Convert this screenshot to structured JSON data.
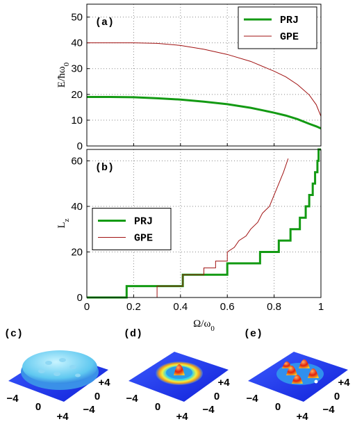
{
  "chart_data": [
    {
      "type": "line",
      "panel_label": "(a)",
      "ylabel": {
        "main": "E/ħω",
        "sub": "0"
      },
      "xlim": [
        0,
        1
      ],
      "ylim": [
        0,
        55
      ],
      "xticks": [
        0,
        0.2,
        0.4,
        0.6,
        0.8,
        1
      ],
      "xtick_labels": false,
      "yticks": [
        0,
        10,
        20,
        30,
        40,
        50
      ],
      "grid": true,
      "legend": "upper right",
      "series": [
        {
          "name": "PRJ",
          "color": "#139a13",
          "width": 3,
          "x": [
            0,
            0.1,
            0.2,
            0.3,
            0.4,
            0.5,
            0.6,
            0.7,
            0.8,
            0.85,
            0.9,
            0.95,
            0.98,
            1.0
          ],
          "values": [
            19,
            19,
            18.9,
            18.5,
            18,
            17.2,
            16.2,
            14.8,
            12.9,
            11.8,
            10.4,
            8.6,
            7.6,
            6.8
          ]
        },
        {
          "name": "GPE",
          "color": "#a01010",
          "width": 1,
          "x": [
            0,
            0.1,
            0.2,
            0.3,
            0.4,
            0.5,
            0.6,
            0.7,
            0.8,
            0.85,
            0.9,
            0.95,
            0.98,
            1.0
          ],
          "values": [
            40,
            40,
            40,
            39.8,
            39,
            37.5,
            35.5,
            32.8,
            29,
            26.8,
            23.8,
            19.8,
            16,
            11.5
          ]
        }
      ]
    },
    {
      "type": "line",
      "panel_label": "(b)",
      "ylabel": {
        "main": "L",
        "sub": "z"
      },
      "xlabel": {
        "main": "Ω/ω",
        "sub": "0"
      },
      "xlim": [
        0,
        1
      ],
      "ylim": [
        0,
        65
      ],
      "xticks": [
        0,
        0.2,
        0.4,
        0.6,
        0.8,
        1
      ],
      "xtick_labels": true,
      "yticks": [
        0,
        20,
        40,
        60
      ],
      "grid": true,
      "legend": "center left",
      "series": [
        {
          "name": "PRJ",
          "color": "#139a13",
          "width": 3,
          "x": [
            0,
            0.17,
            0.17,
            0.41,
            0.41,
            0.6,
            0.6,
            0.74,
            0.74,
            0.82,
            0.82,
            0.87,
            0.87,
            0.91,
            0.91,
            0.935,
            0.935,
            0.95,
            0.95,
            0.965,
            0.965,
            0.975,
            0.975,
            0.985,
            0.985,
            0.99,
            0.99,
            1.0
          ],
          "values": [
            0,
            0,
            5,
            5,
            10,
            10,
            15,
            15,
            20,
            20,
            25,
            25,
            30,
            30,
            35,
            35,
            40,
            40,
            45,
            45,
            50,
            50,
            55,
            55,
            60,
            60,
            65,
            65
          ]
        },
        {
          "name": "GPE",
          "color": "#a01010",
          "width": 1,
          "x": [
            0,
            0.3,
            0.3,
            0.41,
            0.41,
            0.5,
            0.5,
            0.55,
            0.55,
            0.6,
            0.6,
            0.63,
            0.65,
            0.68,
            0.7,
            0.73,
            0.75,
            0.78,
            0.8,
            0.82,
            0.84,
            0.86
          ],
          "values": [
            0,
            0,
            5,
            5,
            10,
            10,
            13,
            13,
            16,
            16,
            20,
            22,
            25,
            27,
            30,
            33,
            37,
            40,
            45,
            50,
            55,
            61
          ]
        }
      ]
    }
  ],
  "insets": [
    {
      "label": "(c)",
      "ticks_left": [
        "−4",
        "0",
        "+4"
      ],
      "ticks_right": [
        "+4",
        "0",
        "−4"
      ]
    },
    {
      "label": "(d)",
      "ticks_left": [
        "−4",
        "0",
        "+4"
      ],
      "ticks_right": [
        "+4",
        "0",
        "−4"
      ]
    },
    {
      "label": "(e)",
      "ticks_left": [
        "−4",
        "0",
        "+4"
      ],
      "ticks_right": [
        "+4",
        "0",
        "−4"
      ]
    }
  ]
}
